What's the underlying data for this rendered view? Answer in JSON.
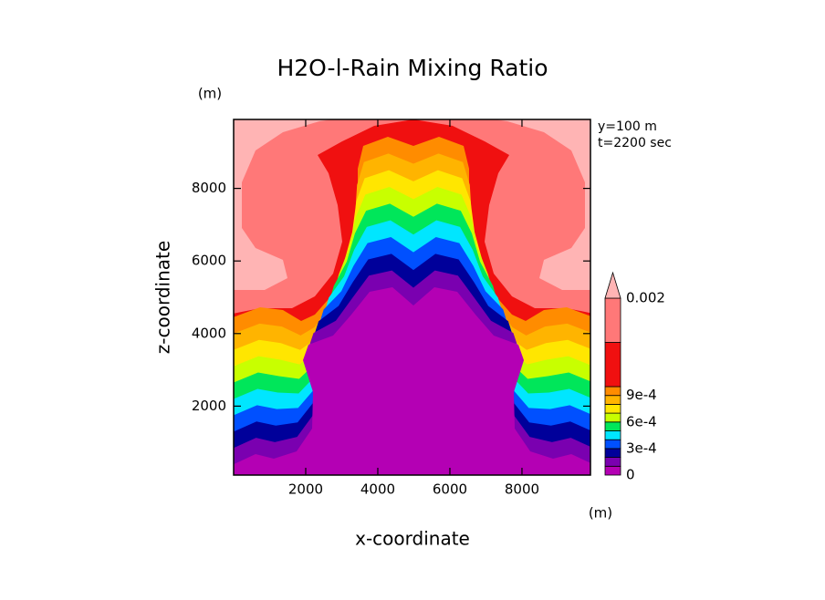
{
  "chart_data": {
    "type": "contour",
    "title": "H2O-l-Rain Mixing Ratio",
    "xlabel": "x-coordinate",
    "ylabel": "z-coordinate",
    "xunit": "(m)",
    "yunit": "(m)",
    "annotations": [
      "y=100 m",
      "t=2200 sec"
    ],
    "xlim": [
      0,
      9900
    ],
    "ylim": [
      100,
      9900
    ],
    "xticks": [
      2000,
      4000,
      6000,
      8000
    ],
    "yticks": [
      2000,
      4000,
      6000,
      8000
    ],
    "colorbar": {
      "levels": [
        0,
        0.0001,
        0.0002,
        0.0003,
        0.0004,
        0.0005,
        0.0006,
        0.0007,
        0.0008,
        0.0009,
        0.001,
        0.0015,
        0.002
      ],
      "colors": [
        "#b400b4",
        "#7a00b0",
        "#00009a",
        "#0050ff",
        "#00e6ff",
        "#00e65a",
        "#c8ff00",
        "#ffe600",
        "#ffb400",
        "#ff8c00",
        "#f01010",
        "#ff7878",
        "#ffb4b4"
      ],
      "ticks": [
        0,
        {
          "value": 0.0003,
          "label": "3e-4"
        },
        {
          "value": 0.0006,
          "label": "6e-4"
        },
        {
          "value": 0.0009,
          "label": "9e-4"
        },
        0.002
      ],
      "extend": "max"
    }
  }
}
